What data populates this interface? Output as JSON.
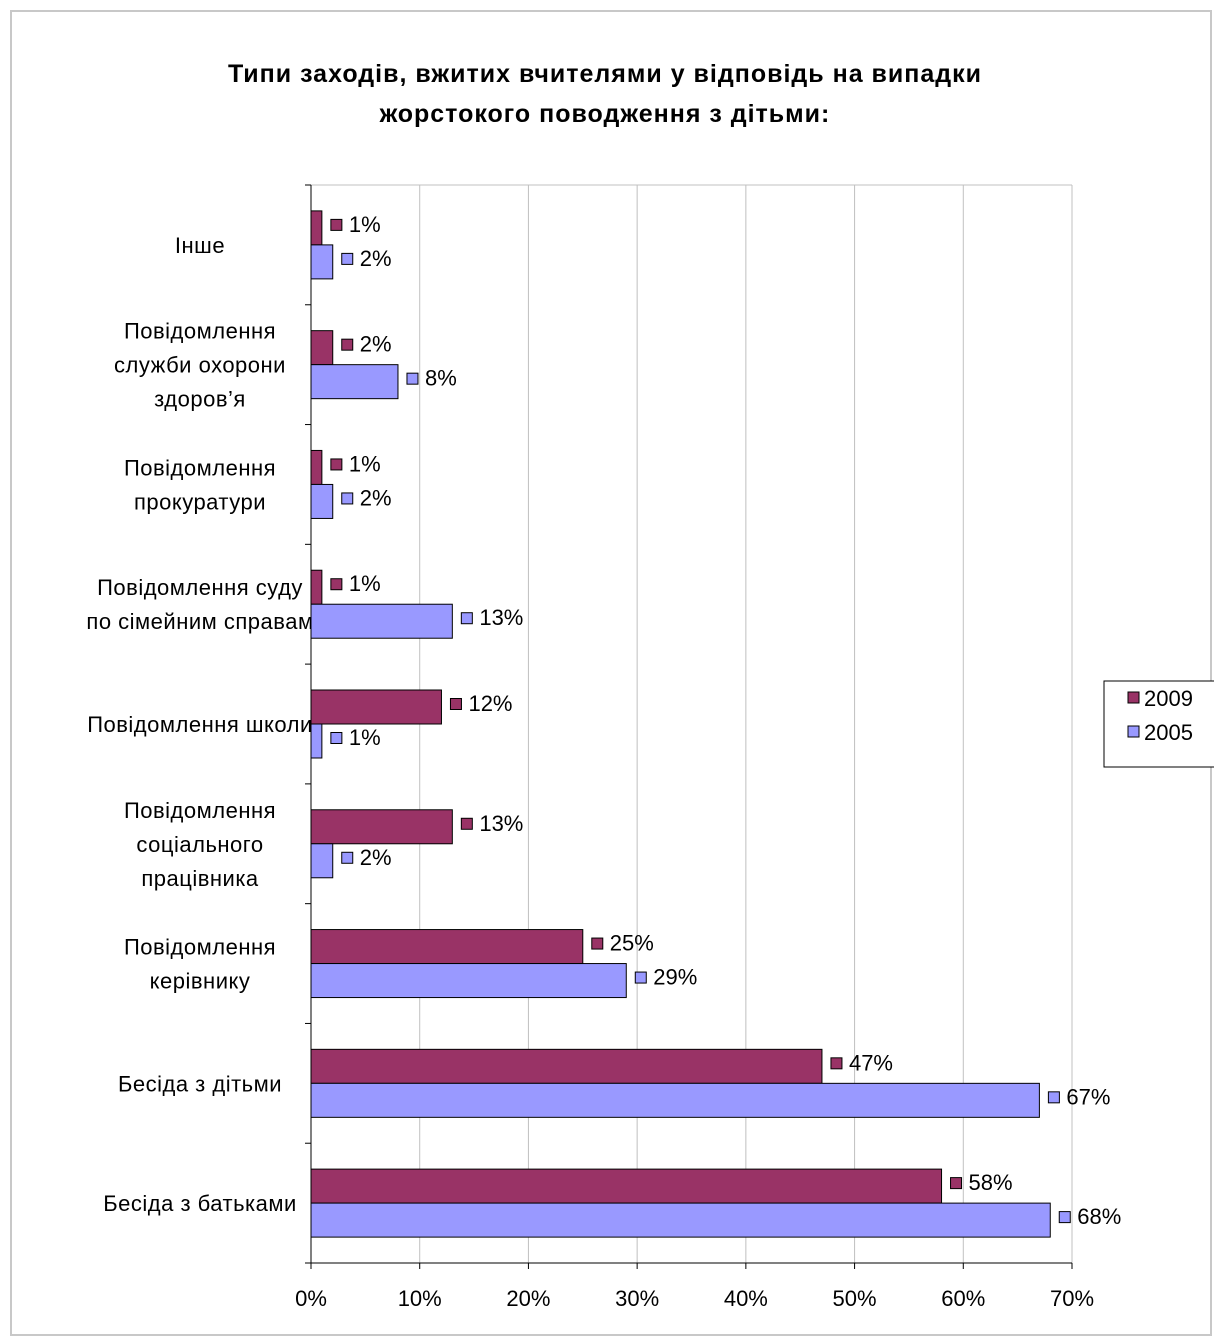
{
  "chart_data": {
    "type": "bar",
    "orientation": "horizontal",
    "title": [
      "Типи заходів, вжитих вчителями у відповідь на випадки",
      "жорстокого поводження з дітьми:"
    ],
    "categories": [
      [
        "Інше"
      ],
      [
        "Повідомлення",
        "служби охорони",
        "здоров’я"
      ],
      [
        "Повідомлення",
        "прокуратури"
      ],
      [
        "Повідомлення суду",
        "по сімейним справам"
      ],
      [
        "Повідомлення школи"
      ],
      [
        "Повідомлення",
        "соціального",
        "працівника"
      ],
      [
        "Повідомлення",
        "керівнику"
      ],
      [
        "Бесіда з дітьми"
      ],
      [
        "Бесіда  з батьками"
      ]
    ],
    "series": [
      {
        "name": "2009",
        "color": "#993366",
        "values": [
          1,
          2,
          1,
          1,
          12,
          13,
          25,
          47,
          58
        ],
        "labels": [
          "1%",
          "2%",
          "1%",
          "1%",
          "12%",
          "13%",
          "25%",
          "47%",
          "58%"
        ]
      },
      {
        "name": "2005",
        "color": "#9999ff",
        "values": [
          2,
          8,
          2,
          13,
          1,
          2,
          29,
          67,
          68
        ],
        "labels": [
          "2%",
          "8%",
          "2%",
          "13%",
          "1%",
          "2%",
          "29%",
          "67%",
          "68%"
        ]
      }
    ],
    "xlim": [
      0,
      70
    ],
    "xticks": [
      "0%",
      "10%",
      "20%",
      "30%",
      "40%",
      "50%",
      "60%",
      "70%"
    ],
    "grid": true,
    "legend_position": "right"
  }
}
